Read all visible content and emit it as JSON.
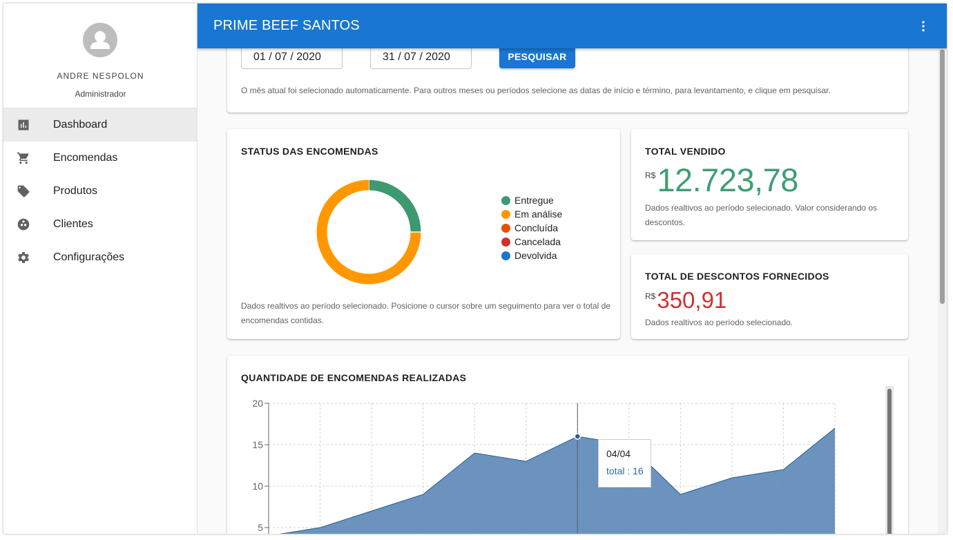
{
  "app": {
    "title": "PRIME BEEF SANTOS"
  },
  "user": {
    "name": "ANDRE NESPOLON",
    "role": "Administrador"
  },
  "sidebar": {
    "items": [
      {
        "label": "Dashboard",
        "icon": "bar-chart-icon",
        "active": true
      },
      {
        "label": "Encomendas",
        "icon": "cart-icon",
        "active": false
      },
      {
        "label": "Produtos",
        "icon": "tag-icon",
        "active": false
      },
      {
        "label": "Clientes",
        "icon": "face-icon",
        "active": false
      },
      {
        "label": "Configurações",
        "icon": "gear-icon",
        "active": false
      }
    ]
  },
  "period": {
    "start_date": "01 / 07 / 2020",
    "end_date": "31 / 07 / 2020",
    "search_label": "PESQUISAR",
    "caption": "O mês atual foi selecionado automaticamente. Para outros meses ou períodos selecione as datas de início e término, para levantamento, e clique em pesquisar."
  },
  "status": {
    "title": "STATUS DAS ENCOMENDAS",
    "legend": [
      {
        "label": "Entregue",
        "color": "#3d9970"
      },
      {
        "label": "Em análise",
        "color": "#ff9800"
      },
      {
        "label": "Concluída",
        "color": "#e65100"
      },
      {
        "label": "Cancelada",
        "color": "#d32f2f"
      },
      {
        "label": "Devolvida",
        "color": "#1976d2"
      }
    ],
    "caption": "Dados realtivos ao período selecionado. Posicione o cursor sobre um seguimento para ver o total de encomendas contidas."
  },
  "total_sold": {
    "title": "TOTAL VENDIDO",
    "currency": "R$",
    "value": "12.723,78",
    "caption": "Dados realtivos ao período selecionado. Valor considerando os descontos."
  },
  "total_discounts": {
    "title": "TOTAL DE DESCONTOS FORNECIDOS",
    "currency": "R$",
    "value": "350,91",
    "caption": "Dados realtivos ao período selecionado."
  },
  "orders_chart": {
    "title": "QUANTIDADE DE ENCOMENDAS REALIZADAS",
    "tooltip": {
      "date": "04/04",
      "text": "total : 16"
    }
  },
  "chart_data": [
    {
      "type": "pie",
      "title": "STATUS DAS ENCOMENDAS",
      "categories": [
        "Entregue",
        "Em análise",
        "Concluída",
        "Cancelada",
        "Devolvida"
      ],
      "values": [
        25,
        75,
        0,
        0,
        0
      ],
      "colors": [
        "#3d9970",
        "#ff9800",
        "#e65100",
        "#d32f2f",
        "#1976d2"
      ],
      "legend": "right"
    },
    {
      "type": "area",
      "title": "QUANTIDADE DE ENCOMENDAS REALIZADAS",
      "y_ticks": [
        5,
        10,
        15,
        20
      ],
      "ylim": [
        0,
        20
      ],
      "grid": true,
      "series": [
        {
          "values": [
            4,
            5,
            7,
            9,
            14,
            13,
            16,
            15,
            9,
            11,
            12,
            17
          ]
        }
      ],
      "highlight_index": 6,
      "color": "#5b87b7"
    }
  ]
}
